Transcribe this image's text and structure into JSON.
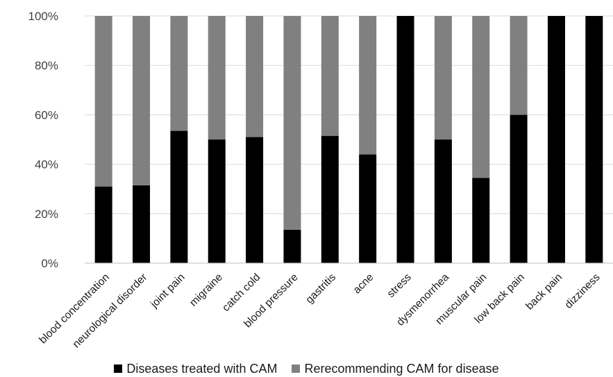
{
  "chart_data": {
    "type": "bar",
    "stacked": true,
    "percent": true,
    "categories": [
      "blood concentration",
      "neurological disorder",
      "joint pain",
      "migraine",
      "catch cold",
      "blood pressure",
      "gastritis",
      "acne",
      "stress",
      "dysmenorrhea",
      "muscular pain",
      "low back pain",
      "back pain",
      "dizziness"
    ],
    "series": [
      {
        "name": "Diseases treated with CAM",
        "color": "#000000",
        "values": [
          31,
          31.5,
          53.5,
          50,
          51,
          13.5,
          51.5,
          44,
          100,
          50,
          34.5,
          60,
          100,
          100
        ]
      },
      {
        "name": "Rerecommending CAM for disease",
        "color": "#808080",
        "values": [
          69,
          68.5,
          46.5,
          50,
          49,
          86.5,
          48.5,
          56,
          0,
          50,
          65.5,
          40,
          0,
          0
        ]
      }
    ],
    "yticks": [
      "0%",
      "20%",
      "40%",
      "60%",
      "80%",
      "100%"
    ],
    "ylim": [
      0,
      100
    ],
    "grid": true,
    "legend_position": "bottom"
  }
}
